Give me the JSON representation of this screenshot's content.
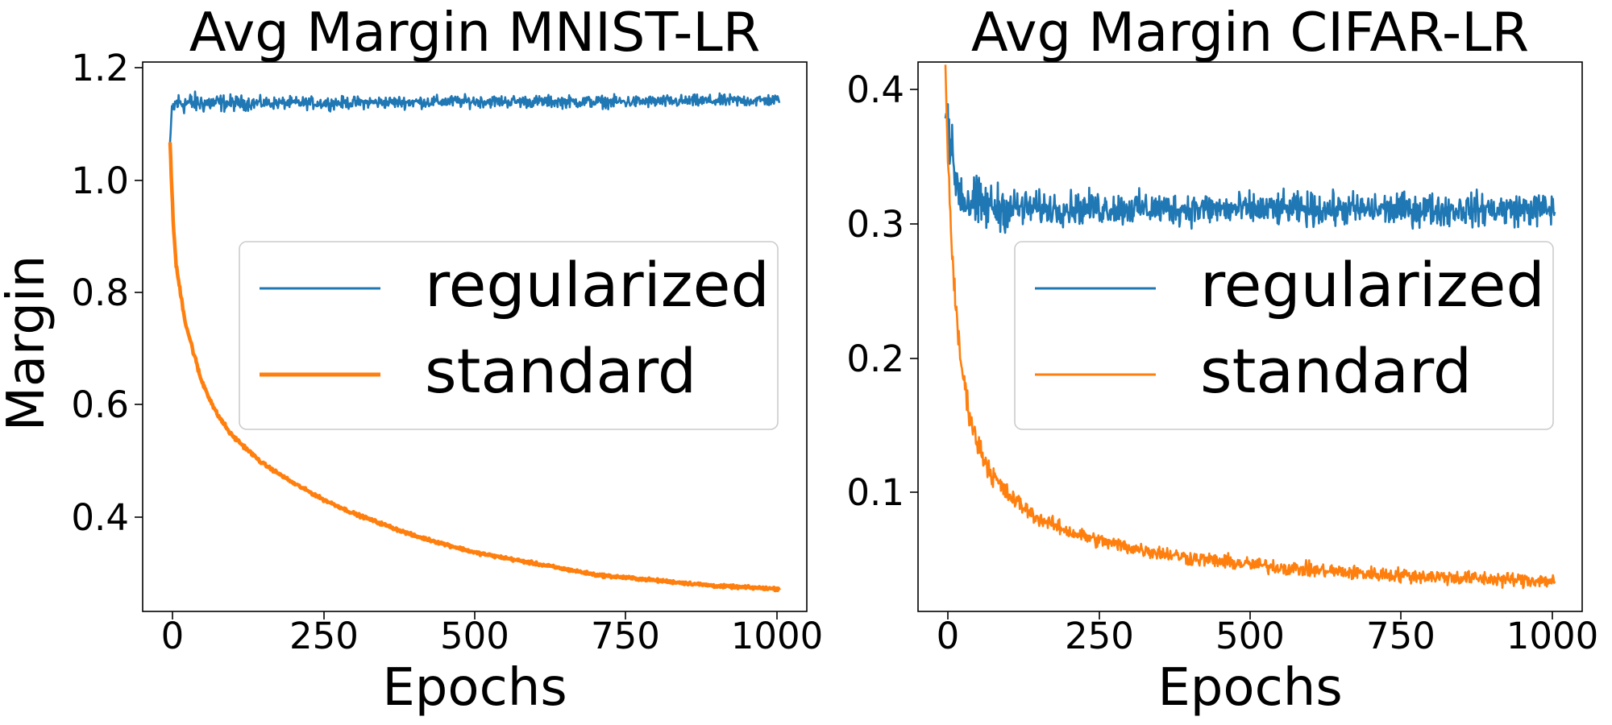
{
  "colors": {
    "regularized": "#1f77b4",
    "standard": "#ff7f0e",
    "axis": "#000000",
    "legend_border": "#cccccc"
  },
  "shared": {
    "ylabel": "Margin"
  },
  "chart_data": [
    {
      "type": "line",
      "title": "Avg Margin MNIST-LR",
      "xlabel": "Epochs",
      "ylabel": "Margin",
      "xlim": [
        -45,
        1045
      ],
      "ylim": [
        0.235,
        1.213
      ],
      "xticks": [
        0,
        250,
        500,
        750,
        1000
      ],
      "xtick_labels": [
        "0",
        "250",
        "500",
        "750",
        "1000"
      ],
      "yticks": [
        0.4,
        0.6,
        0.8,
        1.0,
        1.2
      ],
      "ytick_labels": [
        "0.4",
        "0.6",
        "0.8",
        "1.0",
        "1.2"
      ],
      "legend": [
        "regularized",
        "standard"
      ],
      "legend_loc": "center-right",
      "series": [
        {
          "name": "regularized",
          "key": "regularized",
          "noise": 0.008,
          "x": [
            0,
            2,
            5,
            10,
            20,
            50,
            100,
            250,
            500,
            750,
            1000
          ],
          "y": [
            1.07,
            1.11,
            1.13,
            1.14,
            1.14,
            1.14,
            1.14,
            1.14,
            1.143,
            1.142,
            1.145
          ]
        },
        {
          "name": "standard",
          "key": "standard",
          "noise": 0.002,
          "x": [
            0,
            5,
            10,
            25,
            50,
            75,
            100,
            150,
            200,
            250,
            300,
            400,
            500,
            600,
            700,
            800,
            900,
            1000
          ],
          "y": [
            1.07,
            0.93,
            0.85,
            0.75,
            0.65,
            0.59,
            0.55,
            0.5,
            0.465,
            0.435,
            0.41,
            0.37,
            0.34,
            0.32,
            0.3,
            0.29,
            0.28,
            0.275
          ]
        }
      ]
    },
    {
      "type": "line",
      "title": "Avg Margin CIFAR-LR",
      "xlabel": "Epochs",
      "ylabel": "",
      "xlim": [
        -45,
        1045
      ],
      "ylim": [
        0.012,
        0.422
      ],
      "xticks": [
        0,
        250,
        500,
        750,
        1000
      ],
      "xtick_labels": [
        "0",
        "250",
        "500",
        "750",
        "1000"
      ],
      "yticks": [
        0.1,
        0.2,
        0.3,
        0.4
      ],
      "ytick_labels": [
        "0.1",
        "0.2",
        "0.3",
        "0.4"
      ],
      "legend": [
        "regularized",
        "standard"
      ],
      "legend_loc": "center-right",
      "series": [
        {
          "name": "regularized",
          "key": "regularized",
          "noise": 0.009,
          "x": [
            0,
            3,
            10,
            20,
            30,
            50,
            100,
            250,
            500,
            750,
            1000
          ],
          "y": [
            0.38,
            0.39,
            0.35,
            0.33,
            0.32,
            0.315,
            0.313,
            0.313,
            0.312,
            0.312,
            0.312
          ]
        },
        {
          "name": "standard",
          "key": "standard",
          "noise": 0.004,
          "x": [
            0,
            2,
            5,
            10,
            15,
            20,
            25,
            35,
            50,
            75,
            100,
            150,
            200,
            250,
            300,
            400,
            500,
            600,
            700,
            800,
            900,
            1000
          ],
          "y": [
            0.42,
            0.38,
            0.34,
            0.29,
            0.25,
            0.22,
            0.2,
            0.17,
            0.14,
            0.115,
            0.1,
            0.082,
            0.072,
            0.065,
            0.06,
            0.052,
            0.047,
            0.043,
            0.04,
            0.038,
            0.036,
            0.035
          ]
        }
      ]
    }
  ]
}
